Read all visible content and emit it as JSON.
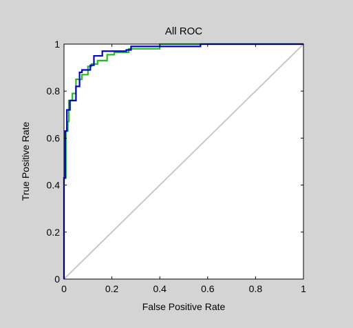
{
  "chart_data": {
    "type": "line",
    "title": "All ROC",
    "xlabel": "False Positive Rate",
    "ylabel": "True Positive Rate",
    "xlim": [
      0,
      1
    ],
    "ylim": [
      0,
      1
    ],
    "xticks": [
      "0",
      "0.2",
      "0.4",
      "0.6",
      "0.8",
      "1"
    ],
    "yticks": [
      "0",
      "0.2",
      "0.4",
      "0.6",
      "0.8",
      "1"
    ],
    "grid": false,
    "legend": false,
    "background_color": "#d4d4d4",
    "reference_line": {
      "x": [
        0,
        1
      ],
      "y": [
        0,
        1
      ],
      "color": "#c8c8c8"
    },
    "series": [
      {
        "color": "#0000cc",
        "points": [
          [
            0,
            0
          ],
          [
            0,
            0.43
          ],
          [
            0.005,
            0.43
          ],
          [
            0.005,
            0.63
          ],
          [
            0.012,
            0.63
          ],
          [
            0.012,
            0.72
          ],
          [
            0.025,
            0.72
          ],
          [
            0.025,
            0.76
          ],
          [
            0.05,
            0.76
          ],
          [
            0.05,
            0.82
          ],
          [
            0.065,
            0.82
          ],
          [
            0.065,
            0.88
          ],
          [
            0.075,
            0.88
          ],
          [
            0.075,
            0.89
          ],
          [
            0.11,
            0.89
          ],
          [
            0.11,
            0.91
          ],
          [
            0.125,
            0.91
          ],
          [
            0.125,
            0.95
          ],
          [
            0.16,
            0.95
          ],
          [
            0.16,
            0.97
          ],
          [
            0.26,
            0.97
          ],
          [
            0.26,
            0.975
          ],
          [
            0.28,
            0.975
          ],
          [
            0.28,
            0.99
          ],
          [
            0.57,
            0.99
          ],
          [
            0.57,
            1.0
          ],
          [
            1,
            1
          ]
        ]
      },
      {
        "color": "#22bb22",
        "points": [
          [
            0,
            0
          ],
          [
            0,
            0.43
          ],
          [
            0.008,
            0.43
          ],
          [
            0.008,
            0.63
          ],
          [
            0.016,
            0.63
          ],
          [
            0.016,
            0.67
          ],
          [
            0.02,
            0.67
          ],
          [
            0.02,
            0.76
          ],
          [
            0.035,
            0.76
          ],
          [
            0.035,
            0.79
          ],
          [
            0.05,
            0.79
          ],
          [
            0.05,
            0.85
          ],
          [
            0.075,
            0.85
          ],
          [
            0.075,
            0.87
          ],
          [
            0.1,
            0.87
          ],
          [
            0.1,
            0.905
          ],
          [
            0.115,
            0.905
          ],
          [
            0.115,
            0.915
          ],
          [
            0.14,
            0.915
          ],
          [
            0.14,
            0.93
          ],
          [
            0.18,
            0.93
          ],
          [
            0.18,
            0.955
          ],
          [
            0.21,
            0.955
          ],
          [
            0.21,
            0.965
          ],
          [
            0.27,
            0.965
          ],
          [
            0.27,
            0.98
          ],
          [
            0.4,
            0.98
          ],
          [
            0.4,
            1.0
          ],
          [
            1,
            1
          ]
        ]
      }
    ]
  }
}
